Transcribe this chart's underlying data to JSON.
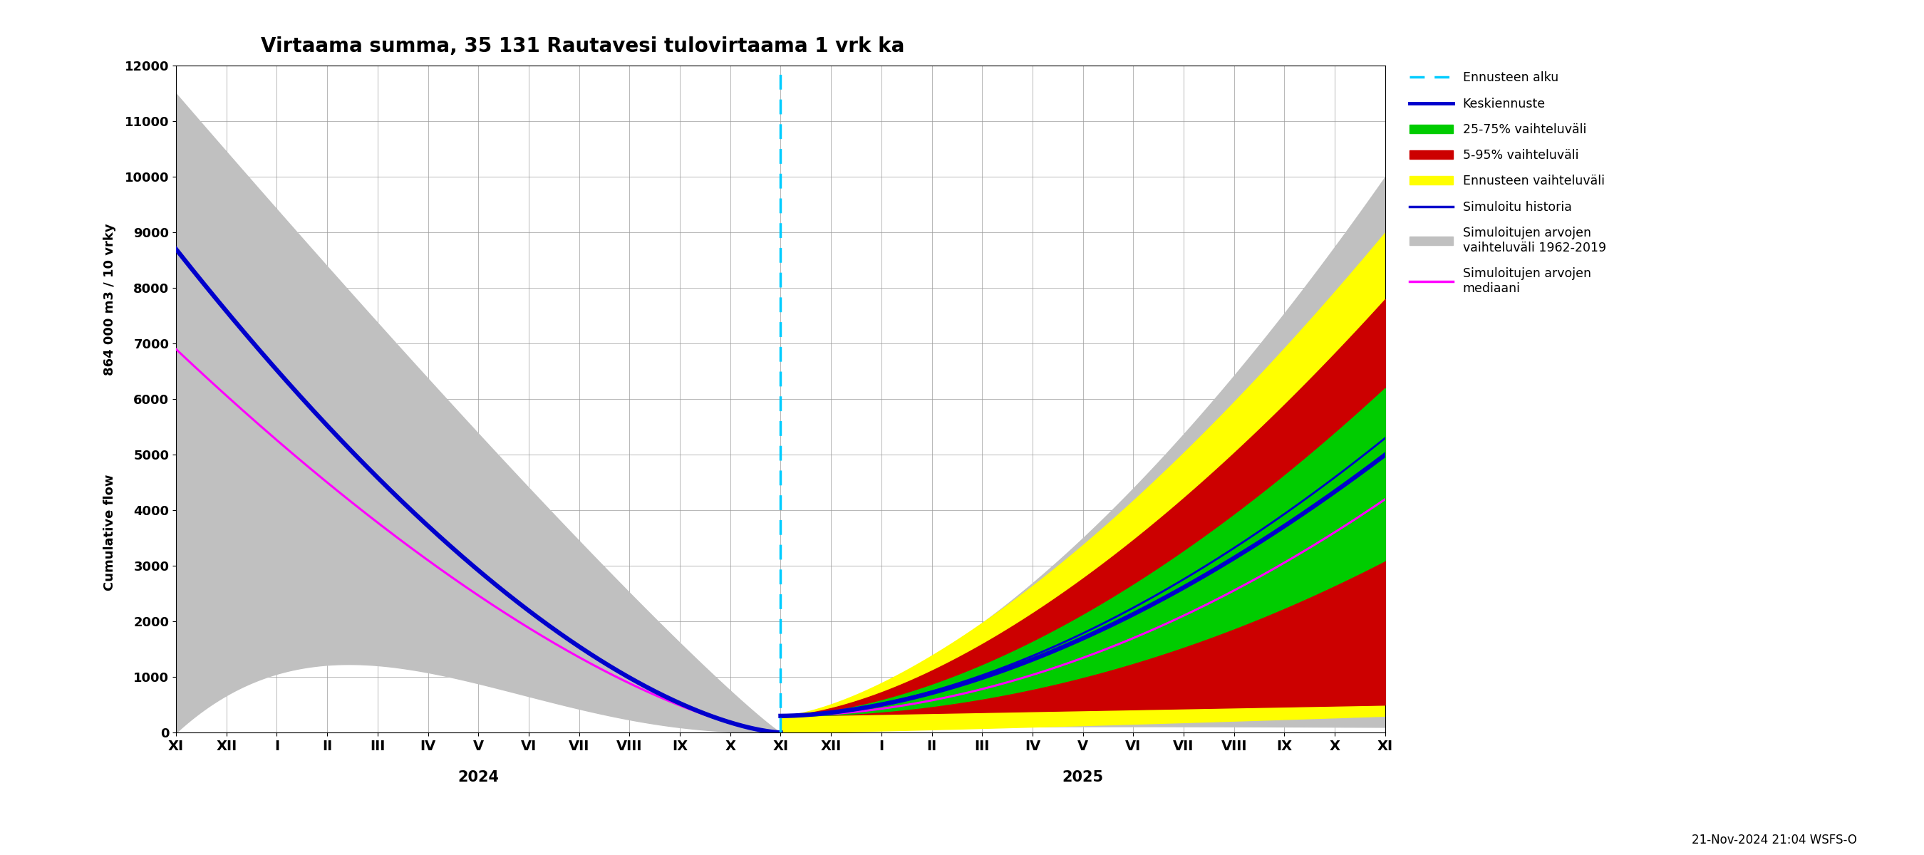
{
  "title": "Virtaama summa, 35 131 Rautavesi tulovirtaama 1 vrk ka",
  "ylabel_line1": "864 000 m3 / 10 vrky",
  "ylabel_line2": "Cumulative flow",
  "background_color": "#ffffff",
  "grid_color": "#999999",
  "ylim": [
    0,
    12000
  ],
  "yticks": [
    0,
    1000,
    2000,
    3000,
    4000,
    5000,
    6000,
    7000,
    8000,
    9000,
    10000,
    11000,
    12000
  ],
  "xtick_labels": [
    "XI",
    "XII",
    "I",
    "II",
    "III",
    "IV",
    "V",
    "VI",
    "VII",
    "VIII",
    "IX",
    "X",
    "XI",
    "XII",
    "I",
    "II",
    "III",
    "IV",
    "V",
    "VI",
    "VII",
    "VIII",
    "IX",
    "X",
    "XI"
  ],
  "year_label_2024": "2024",
  "year_label_2025": "2025",
  "forecast_x": 12.0,
  "xlim": [
    0,
    24
  ],
  "footnote": "21-Nov-2024 21:04 WSFS-O",
  "colors": {
    "cyan_dash": "#00ccff",
    "blue_thick": "#0000cc",
    "blue_thin": "#0000cc",
    "green": "#00cc00",
    "red": "#cc0000",
    "yellow": "#ffff00",
    "gray": "#bbbbbb",
    "magenta": "#ff00ff",
    "gray_hist_band": "#c0c0c0"
  }
}
